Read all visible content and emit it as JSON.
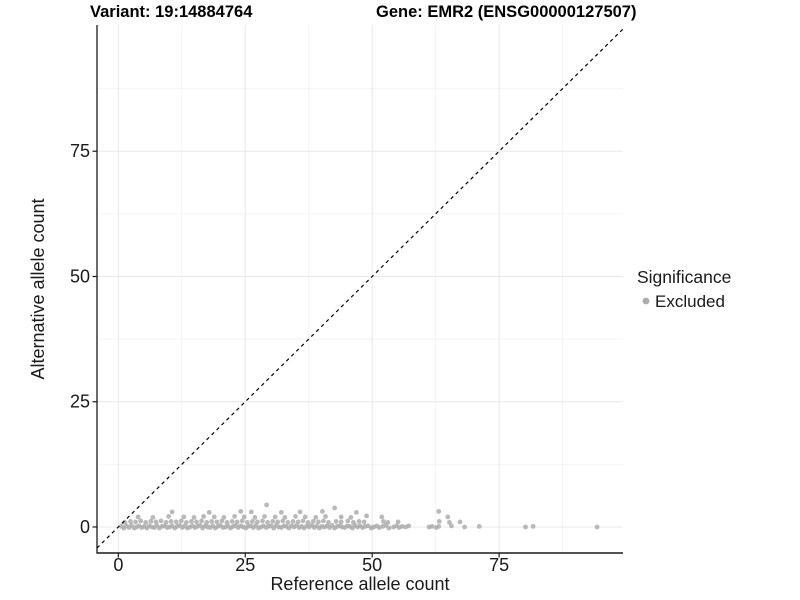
{
  "titles": {
    "variant": "Variant: 19:14884764",
    "gene": "Gene: EMR2 (ENSG00000127507)"
  },
  "colors": {
    "background": "#ffffff",
    "point": "#adadad",
    "axis_line": "#1a1a1a",
    "tick_label": "#1a1a1a",
    "grid_major": "#e8e8e8",
    "grid_minor": "#f4f4f4",
    "identity_line": "#000000"
  },
  "chart_data": {
    "type": "scatter",
    "title_left": "Variant: 19:14884764",
    "title_right": "Gene: EMR2 (ENSG00000127507)",
    "xlabel": "Reference allele count",
    "ylabel": "Alternative allele count",
    "x_ticks": [
      0,
      25,
      50,
      75
    ],
    "y_ticks": [
      0,
      25,
      50,
      75
    ],
    "x_minor_ticks": [
      12.5,
      37.5,
      62.5,
      87.5
    ],
    "y_minor_ticks": [
      12.5,
      37.5,
      62.5,
      87.5
    ],
    "xlim": [
      -4.2,
      99.4
    ],
    "ylim": [
      -5.2,
      100.2
    ],
    "grid": "major+minor",
    "identity_line": {
      "slope": 1,
      "intercept": 0,
      "style": "dashed"
    },
    "legend": {
      "position": "right",
      "title": "Significance",
      "items": [
        {
          "label": "Excluded",
          "color": "#adadad"
        }
      ]
    },
    "series": [
      {
        "name": "Excluded",
        "color": "#adadad",
        "marker": "circle",
        "points": [
          [
            0.6,
            0.1
          ],
          [
            1.1,
            -0.2
          ],
          [
            1.6,
            0.2
          ],
          [
            2.1,
            -0.1
          ],
          [
            2.6,
            0.3
          ],
          [
            3.1,
            -0.2
          ],
          [
            3.6,
            0
          ],
          [
            4.1,
            0.2
          ],
          [
            4.6,
            -0.1
          ],
          [
            5.1,
            0.1
          ],
          [
            5.6,
            -0.2
          ],
          [
            6.1,
            0.2
          ],
          [
            6.6,
            0
          ],
          [
            7.1,
            -0.1
          ],
          [
            7.6,
            0.3
          ],
          [
            8.1,
            -0.2
          ],
          [
            8.6,
            0.1
          ],
          [
            9.1,
            0.2
          ],
          [
            9.6,
            -0.1
          ],
          [
            10.1,
            0
          ],
          [
            10.6,
            0.2
          ],
          [
            11.1,
            -0.2
          ],
          [
            11.6,
            0.1
          ],
          [
            12.1,
            0.3
          ],
          [
            12.6,
            -0.1
          ],
          [
            13.1,
            0.2
          ],
          [
            13.6,
            -0.2
          ],
          [
            14.1,
            0
          ],
          [
            14.6,
            0.2
          ],
          [
            15.1,
            -0.1
          ],
          [
            15.6,
            0.1
          ],
          [
            16.1,
            0.3
          ],
          [
            16.6,
            -0.2
          ],
          [
            17.1,
            0.2
          ],
          [
            17.6,
            0
          ],
          [
            18.1,
            -0.1
          ],
          [
            18.6,
            0.2
          ],
          [
            19.1,
            -0.2
          ],
          [
            19.6,
            0.1
          ],
          [
            20.1,
            0.3
          ],
          [
            20.6,
            -0.1
          ],
          [
            21.1,
            0
          ],
          [
            21.6,
            0.2
          ],
          [
            22.1,
            -0.2
          ],
          [
            22.6,
            0.1
          ],
          [
            23.1,
            0.3
          ],
          [
            23.6,
            -0.1
          ],
          [
            24.1,
            0.2
          ],
          [
            24.6,
            0
          ],
          [
            25.1,
            -0.2
          ],
          [
            25.6,
            0.1
          ],
          [
            26.1,
            0.2
          ],
          [
            26.6,
            -0.1
          ],
          [
            27.1,
            0.3
          ],
          [
            27.6,
            -0.2
          ],
          [
            28.1,
            0
          ],
          [
            28.6,
            0.2
          ],
          [
            29.1,
            -0.1
          ],
          [
            29.6,
            0.1
          ],
          [
            30.1,
            0.2
          ],
          [
            30.6,
            -0.2
          ],
          [
            31.1,
            0.3
          ],
          [
            31.6,
            0
          ],
          [
            32.1,
            -0.1
          ],
          [
            32.6,
            0.2
          ],
          [
            33.1,
            0.1
          ],
          [
            33.6,
            -0.2
          ],
          [
            34.1,
            0.2
          ],
          [
            34.6,
            0
          ],
          [
            35.1,
            0.3
          ],
          [
            35.6,
            -0.1
          ],
          [
            36.1,
            0.1
          ],
          [
            36.6,
            -0.2
          ],
          [
            37.1,
            0.2
          ],
          [
            37.6,
            0
          ],
          [
            38.1,
            0.3
          ],
          [
            38.6,
            -0.1
          ],
          [
            39.1,
            0.2
          ],
          [
            39.6,
            -0.2
          ],
          [
            40.1,
            0.1
          ],
          [
            40.6,
            0
          ],
          [
            41.1,
            0.2
          ],
          [
            41.6,
            -0.1
          ],
          [
            42.1,
            0.3
          ],
          [
            42.6,
            -0.2
          ],
          [
            43.1,
            0.1
          ],
          [
            43.6,
            0.2
          ],
          [
            44.1,
            0
          ],
          [
            44.6,
            -0.1
          ],
          [
            45.1,
            0.2
          ],
          [
            45.6,
            0.1
          ],
          [
            46.1,
            -0.2
          ],
          [
            46.6,
            0.3
          ],
          [
            47.1,
            0
          ],
          [
            47.6,
            0.2
          ],
          [
            48.1,
            -0.1
          ],
          [
            48.6,
            0.1
          ],
          [
            49.2,
            0.2
          ],
          [
            49.8,
            -0.2
          ],
          [
            50.3,
            0
          ],
          [
            50.9,
            0.2
          ],
          [
            51.4,
            -0.1
          ],
          [
            52.1,
            0.1
          ],
          [
            52.7,
            0.3
          ],
          [
            53.3,
            -0.2
          ],
          [
            54.2,
            0
          ],
          [
            54.8,
            0.2
          ],
          [
            55.3,
            -0.1
          ],
          [
            55.9,
            0.1
          ],
          [
            56.6,
            0
          ],
          [
            57.2,
            0.2
          ],
          [
            61.2,
            0
          ],
          [
            61.8,
            0.1
          ],
          [
            62.6,
            -0.1
          ],
          [
            63.1,
            0.1
          ],
          [
            65.6,
            0.2
          ],
          [
            68.2,
            0
          ],
          [
            71.1,
            0.1
          ],
          [
            80.2,
            0
          ],
          [
            81.7,
            0.1
          ],
          [
            94.3,
            0
          ],
          [
            1.3,
            0.9
          ],
          [
            2.4,
            1.1
          ],
          [
            3.4,
            1.0
          ],
          [
            4.4,
            1.2
          ],
          [
            5.4,
            0.9
          ],
          [
            6.4,
            1.1
          ],
          [
            7.4,
            1.0
          ],
          [
            8.4,
            1.2
          ],
          [
            9.4,
            0.9
          ],
          [
            10.4,
            1.1
          ],
          [
            11.4,
            1.0
          ],
          [
            12.4,
            1.2
          ],
          [
            13.4,
            0.9
          ],
          [
            14.4,
            1.1
          ],
          [
            15.4,
            1.0
          ],
          [
            16.4,
            1.2
          ],
          [
            17.4,
            0.9
          ],
          [
            18.4,
            1.1
          ],
          [
            19.4,
            1.0
          ],
          [
            20.4,
            1.2
          ],
          [
            21.4,
            0.9
          ],
          [
            22.4,
            1.1
          ],
          [
            23.4,
            1.0
          ],
          [
            24.4,
            1.2
          ],
          [
            25.4,
            0.9
          ],
          [
            26.4,
            1.1
          ],
          [
            27.4,
            1.0
          ],
          [
            28.4,
            1.2
          ],
          [
            29.4,
            0.9
          ],
          [
            30.4,
            1.1
          ],
          [
            31.4,
            1.0
          ],
          [
            32.4,
            1.2
          ],
          [
            33.4,
            0.9
          ],
          [
            34.4,
            1.1
          ],
          [
            35.4,
            1.0
          ],
          [
            36.4,
            1.2
          ],
          [
            37.4,
            0.9
          ],
          [
            38.4,
            1.1
          ],
          [
            39.4,
            1.0
          ],
          [
            40.4,
            1.2
          ],
          [
            41.4,
            0.9
          ],
          [
            42.9,
            1.1
          ],
          [
            43.9,
            1.0
          ],
          [
            45.2,
            1.2
          ],
          [
            46.3,
            0.9
          ],
          [
            47.4,
            1.1
          ],
          [
            48.4,
            1.0
          ],
          [
            52.2,
            1.1
          ],
          [
            53.1,
            0.9
          ],
          [
            55.1,
            1.0
          ],
          [
            63.2,
            1.1
          ],
          [
            65.2,
            0.9
          ],
          [
            67.3,
            1.0
          ],
          [
            3.9,
            2.0
          ],
          [
            6.8,
            1.9
          ],
          [
            9.9,
            2.1
          ],
          [
            12.9,
            2.0
          ],
          [
            14.9,
            1.9
          ],
          [
            16.8,
            2.1
          ],
          [
            18.9,
            2.0
          ],
          [
            20.8,
            1.9
          ],
          [
            22.9,
            2.1
          ],
          [
            24.8,
            2.0
          ],
          [
            26.9,
            1.9
          ],
          [
            28.8,
            2.1
          ],
          [
            30.9,
            2.0
          ],
          [
            32.8,
            1.9
          ],
          [
            34.9,
            2.1
          ],
          [
            36.8,
            2.0
          ],
          [
            38.9,
            1.9
          ],
          [
            40.8,
            2.1
          ],
          [
            43.9,
            2.0
          ],
          [
            45.8,
            1.9
          ],
          [
            48.9,
            2.2
          ],
          [
            51.9,
            2.0
          ],
          [
            64.9,
            2.0
          ],
          [
            10.6,
            3.0
          ],
          [
            17.9,
            2.9
          ],
          [
            24.1,
            3.1
          ],
          [
            26.2,
            3.0
          ],
          [
            32.1,
            2.9
          ],
          [
            35.8,
            3.0
          ],
          [
            40.2,
            3.1
          ],
          [
            42.6,
            3.8
          ],
          [
            46.9,
            2.9
          ],
          [
            29.2,
            4.4
          ],
          [
            63.1,
            3.1
          ]
        ]
      }
    ]
  }
}
